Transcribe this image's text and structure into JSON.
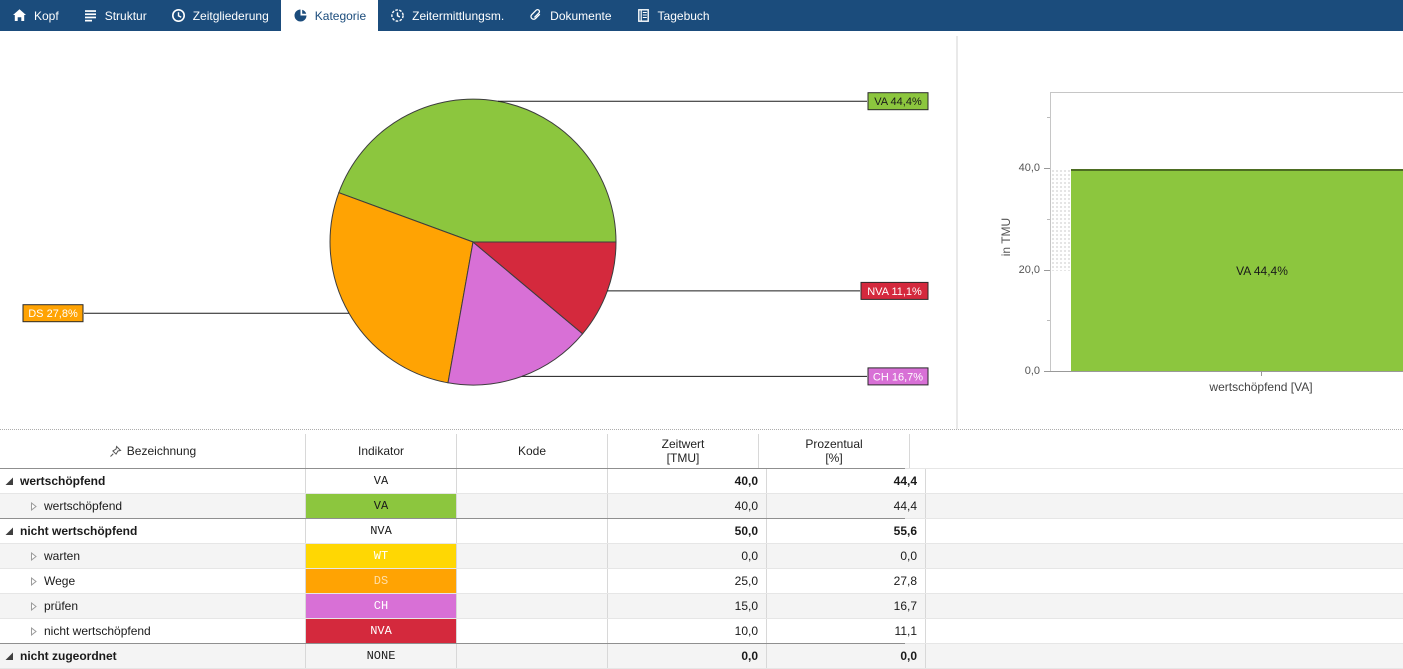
{
  "nav": {
    "tabs": [
      {
        "label": "Kopf",
        "icon": "home-icon",
        "selected": false
      },
      {
        "label": "Struktur",
        "icon": "structure-icon",
        "selected": false
      },
      {
        "label": "Zeitgliederung",
        "icon": "clock-icon",
        "selected": false
      },
      {
        "label": "Kategorie",
        "icon": "pie-chart-icon",
        "selected": true
      },
      {
        "label": "Zeitermittlungsm.",
        "icon": "stopwatch-icon",
        "selected": false
      },
      {
        "label": "Dokumente",
        "icon": "paperclip-icon",
        "selected": false
      },
      {
        "label": "Tagebuch",
        "icon": "book-icon",
        "selected": false
      }
    ]
  },
  "colors": {
    "nav_bg": "#1B4C7C",
    "nav_selected_bg": "#FFFFFF",
    "nav_text": "#FFFFFF",
    "va_green": "#8CC63E",
    "ds_orange": "#FFA303",
    "ch_magenta": "#D870D6",
    "nva_red": "#D4293D",
    "wt_yellow": "#FFD703"
  },
  "chart_data": [
    {
      "type": "pie",
      "title": "",
      "slices": [
        {
          "name": "VA",
          "label": "VA 44,4%",
          "value": 44.4,
          "color": "#8CC63E",
          "label_text_color": "#1a1a1a"
        },
        {
          "name": "DS",
          "label": "DS 27,8%",
          "value": 27.8,
          "color": "#FFA303",
          "label_text_color": "#ffffff"
        },
        {
          "name": "CH",
          "label": "CH 16,7%",
          "value": 16.7,
          "color": "#D870D6",
          "label_text_color": "#ffffff"
        },
        {
          "name": "NVA",
          "label": "NVA 11,1%",
          "value": 11.1,
          "color": "#D4293D",
          "label_text_color": "#ffffff"
        }
      ]
    },
    {
      "type": "bar",
      "categories": [
        "wertschöpfend [VA]"
      ],
      "series": [
        {
          "name": "VA",
          "values": [
            40.0
          ]
        }
      ],
      "bar_label": "VA 44,4%",
      "bar_color": "#8CC63E",
      "ylabel": "in TMU",
      "xlabel": "",
      "yticks": [
        "0,0",
        "20,0",
        "40,0"
      ],
      "ytick_values": [
        0,
        20,
        40
      ],
      "minor_tick_values": [
        10,
        30,
        50
      ],
      "ylim": [
        0,
        55
      ],
      "grid": false,
      "legend": "none"
    }
  ],
  "table": {
    "headers": {
      "bezeichnung": "Bezeichnung",
      "indikator": "Indikator",
      "kode": "Kode",
      "zeitwert_line1": "Zeitwert",
      "zeitwert_line2": "[TMU]",
      "prozentual_line1": "Prozentual",
      "prozentual_line2": "[%]"
    },
    "rows": [
      {
        "bezeichnung": "wertschöpfend",
        "indikator": "VA",
        "kode": "",
        "zeitwert": "40,0",
        "prozentual": "44,4",
        "level": 0,
        "group": true,
        "indikator_bg": "",
        "indikator_color": "#1a1a1a"
      },
      {
        "bezeichnung": "wertschöpfend",
        "indikator": "VA",
        "kode": "",
        "zeitwert": "40,0",
        "prozentual": "44,4",
        "level": 1,
        "group": false,
        "indikator_bg": "#8CC63E",
        "indikator_color": "#1a1a1a"
      },
      {
        "bezeichnung": "nicht wertschöpfend",
        "indikator": "NVA",
        "kode": "",
        "zeitwert": "50,0",
        "prozentual": "55,6",
        "level": 0,
        "group": true,
        "indikator_bg": "",
        "indikator_color": "#1a1a1a"
      },
      {
        "bezeichnung": "warten",
        "indikator": "WT",
        "kode": "",
        "zeitwert": "0,0",
        "prozentual": "0,0",
        "level": 1,
        "group": false,
        "indikator_bg": "#FFD703",
        "indikator_color": "#ffffff"
      },
      {
        "bezeichnung": "Wege",
        "indikator": "DS",
        "kode": "",
        "zeitwert": "25,0",
        "prozentual": "27,8",
        "level": 1,
        "group": false,
        "indikator_bg": "#FFA303",
        "indikator_color": "#FFDFA8"
      },
      {
        "bezeichnung": "prüfen",
        "indikator": "CH",
        "kode": "",
        "zeitwert": "15,0",
        "prozentual": "16,7",
        "level": 1,
        "group": false,
        "indikator_bg": "#D870D6",
        "indikator_color": "#ffffff"
      },
      {
        "bezeichnung": "nicht wertschöpfend",
        "indikator": "NVA",
        "kode": "",
        "zeitwert": "10,0",
        "prozentual": "11,1",
        "level": 1,
        "group": false,
        "indikator_bg": "#D4293D",
        "indikator_color": "#ffffff"
      },
      {
        "bezeichnung": "nicht zugeordnet",
        "indikator": "NONE",
        "kode": "",
        "zeitwert": "0,0",
        "prozentual": "0,0",
        "level": 0,
        "group": true,
        "indikator_bg": "",
        "indikator_color": "#1a1a1a"
      }
    ]
  }
}
